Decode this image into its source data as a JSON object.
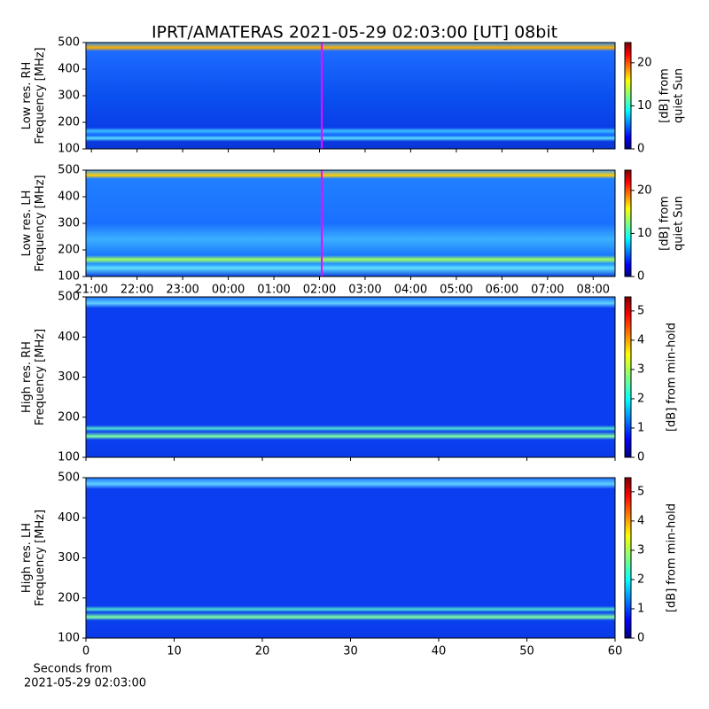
{
  "chart_data": [
    {
      "type": "spectrogram",
      "title": "IPRT/AMATERAS 2021-05-29 02:03:00 [UT]   08bit",
      "ylabel": [
        "Low res. RH",
        "Frequency [MHz]"
      ],
      "xlim": [
        20.88,
        32.48
      ],
      "ylim": [
        100,
        500
      ],
      "yticks": [
        100,
        200,
        300,
        400,
        500
      ],
      "marker_x": 26.05,
      "marker_color": "#ff00ff",
      "clim": [
        0,
        24.7
      ],
      "cticks": [
        0,
        10,
        20
      ],
      "clabel": [
        "[dB] from",
        "quiet Sun"
      ]
    },
    {
      "type": "spectrogram",
      "ylabel": [
        "Low res. LH",
        "Frequency [MHz]"
      ],
      "xlim": [
        20.88,
        32.48
      ],
      "xticks": [
        {
          "value": 21,
          "label": "21:00"
        },
        {
          "value": 22,
          "label": "22:00"
        },
        {
          "value": 23,
          "label": "23:00"
        },
        {
          "value": 24,
          "label": "00:00"
        },
        {
          "value": 25,
          "label": "01:00"
        },
        {
          "value": 26,
          "label": "02:00"
        },
        {
          "value": 27,
          "label": "03:00"
        },
        {
          "value": 28,
          "label": "04:00"
        },
        {
          "value": 29,
          "label": "05:00"
        },
        {
          "value": 30,
          "label": "06:00"
        },
        {
          "value": 31,
          "label": "07:00"
        },
        {
          "value": 32,
          "label": "08:00"
        }
      ],
      "ylim": [
        100,
        500
      ],
      "yticks": [
        100,
        200,
        300,
        400,
        500
      ],
      "marker_x": 26.05,
      "marker_color": "#ff00ff",
      "clim": [
        0,
        24.7
      ],
      "cticks": [
        0,
        10,
        20
      ],
      "clabel": [
        "[dB] from",
        "quiet Sun"
      ]
    },
    {
      "type": "spectrogram",
      "ylabel": [
        "High res. RH",
        "Frequency [MHz]"
      ],
      "xlim": [
        0,
        60
      ],
      "ylim": [
        100,
        500
      ],
      "yticks": [
        100,
        200,
        300,
        400,
        500
      ],
      "clim": [
        0,
        5.48
      ],
      "cticks": [
        0,
        1,
        2,
        3,
        4,
        5
      ],
      "clabel": [
        "[dB] from min-hold"
      ]
    },
    {
      "type": "spectrogram",
      "ylabel": [
        "High res. LH",
        "Frequency [MHz]"
      ],
      "xlim": [
        0,
        60
      ],
      "xticks": [
        0,
        10,
        20,
        30,
        40,
        50,
        60
      ],
      "xlabel": [
        "Seconds from",
        "2021-05-29 02:03:00"
      ],
      "ylim": [
        100,
        500
      ],
      "yticks": [
        100,
        200,
        300,
        400,
        500
      ],
      "clim": [
        0,
        5.48
      ],
      "cticks": [
        0,
        1,
        2,
        3,
        4,
        5
      ],
      "clabel": [
        "[dB] from min-hold"
      ]
    }
  ]
}
